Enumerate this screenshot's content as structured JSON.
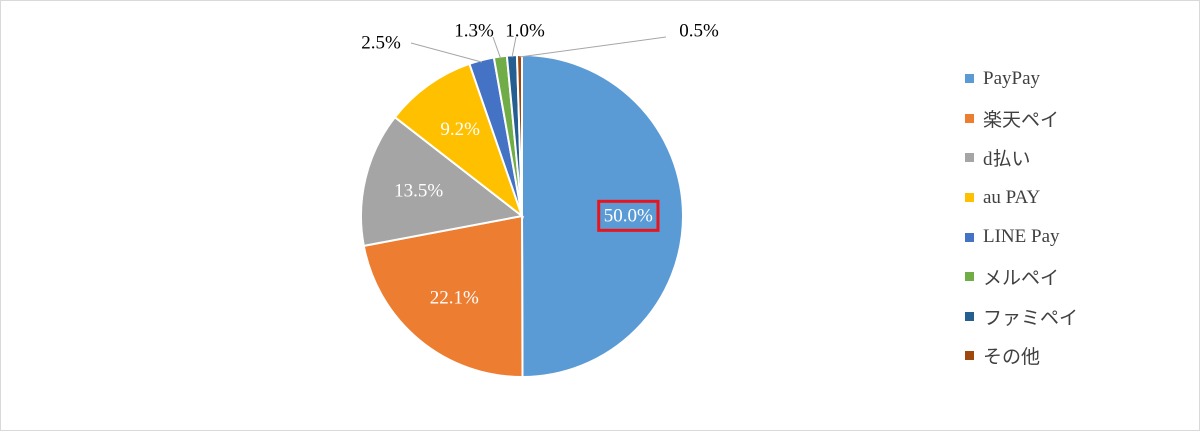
{
  "chart_data": {
    "type": "pie",
    "title": "",
    "categories": [
      "PayPay",
      "楽天ペイ",
      "d払い",
      "au PAY",
      "LINE Pay",
      "メルペイ",
      "ファミペイ",
      "その他"
    ],
    "values": [
      50.0,
      22.1,
      13.5,
      9.2,
      2.5,
      1.3,
      1.0,
      0.5
    ],
    "labels": [
      "50.0%",
      "22.1%",
      "13.5%",
      "9.2%",
      "2.5%",
      "1.3%",
      "1.0%",
      "0.5%"
    ],
    "colors": [
      "#5B9BD5",
      "#ED7D31",
      "#A5A5A5",
      "#FFC000",
      "#4472C4",
      "#70AD47",
      "#255E91",
      "#9E480E"
    ],
    "legend": "right",
    "highlighted_label": "50.0%",
    "highlight_color": "#E8141E"
  }
}
